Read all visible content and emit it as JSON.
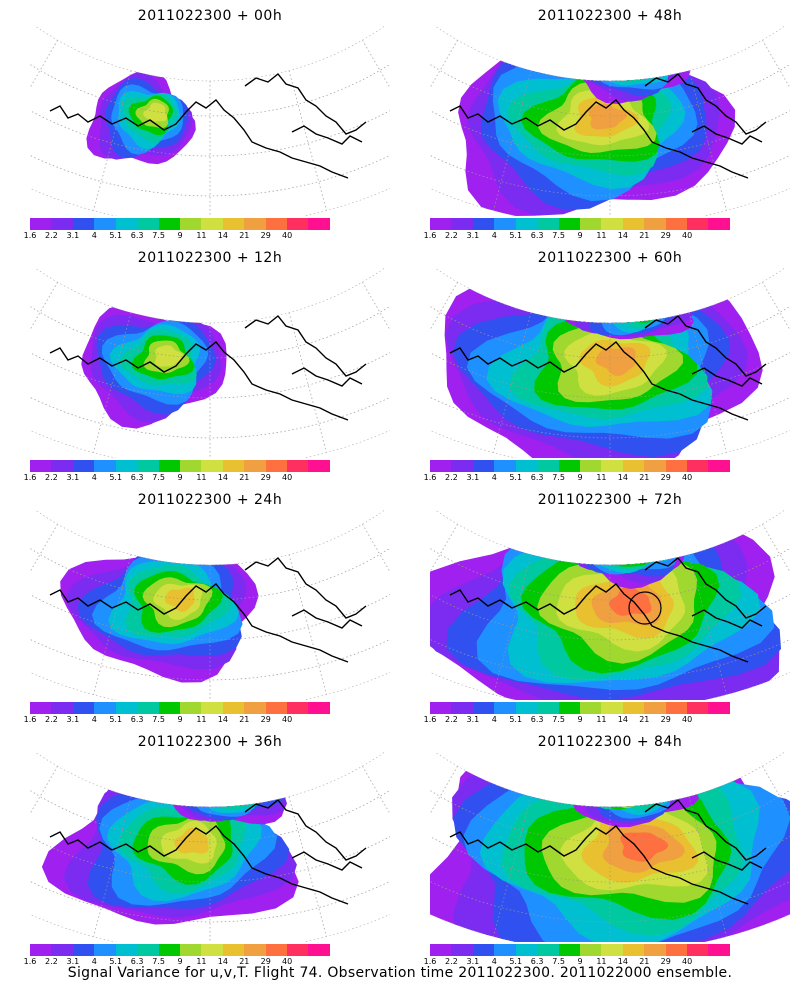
{
  "panels": [
    {
      "title": "2011022300 + 00h",
      "hours": 0
    },
    {
      "title": "2011022300 + 48h",
      "hours": 48
    },
    {
      "title": "2011022300 + 12h",
      "hours": 12
    },
    {
      "title": "2011022300 + 60h",
      "hours": 60
    },
    {
      "title": "2011022300 + 24h",
      "hours": 24
    },
    {
      "title": "2011022300 + 72h",
      "hours": 72
    },
    {
      "title": "2011022300 + 36h",
      "hours": 36
    },
    {
      "title": "2011022300 + 84h",
      "hours": 84
    }
  ],
  "colorbar": {
    "labels": [
      "1.6",
      "2.2",
      "3.1",
      "4",
      "5.1",
      "6.3",
      "7.5",
      "9",
      "11",
      "14",
      "21",
      "29",
      "40"
    ],
    "colors": [
      "#a020f0",
      "#7b2cf0",
      "#3050f0",
      "#1e90ff",
      "#00bfd0",
      "#00c8a0",
      "#00c800",
      "#a0d830",
      "#d0e040",
      "#e8c030",
      "#f0a040",
      "#ff7040",
      "#ff3060",
      "#ff1090"
    ]
  },
  "caption": "Signal Variance for u,v,T. Flight 74. Observation time 2011022300. 2011022000 ensemble."
}
